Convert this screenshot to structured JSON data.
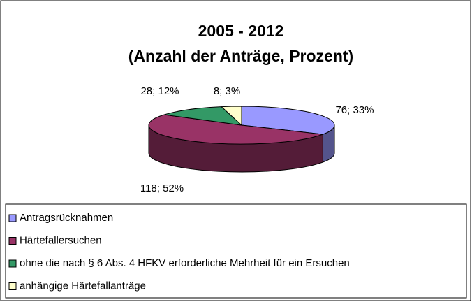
{
  "chart_data": {
    "type": "pie",
    "title": [
      "2005 - 2012",
      "(Anzahl der Anträge, Prozent)"
    ],
    "categories": [
      "Antragsrücknahmen",
      "Härtefallersuchen",
      "ohne die nach § 6 Abs. 4 HFKV erforderliche Mehrheit für ein Ersuchen",
      "anhängige Härtefallanträge"
    ],
    "values": [
      76,
      118,
      28,
      8
    ],
    "value_labels": [
      "76; 33%",
      "118; 52%",
      "28; 12%",
      "8; 3%"
    ],
    "colors": [
      "#9999ff",
      "#993366",
      "#339966",
      "#ffffcc"
    ],
    "legend": "bottom"
  }
}
